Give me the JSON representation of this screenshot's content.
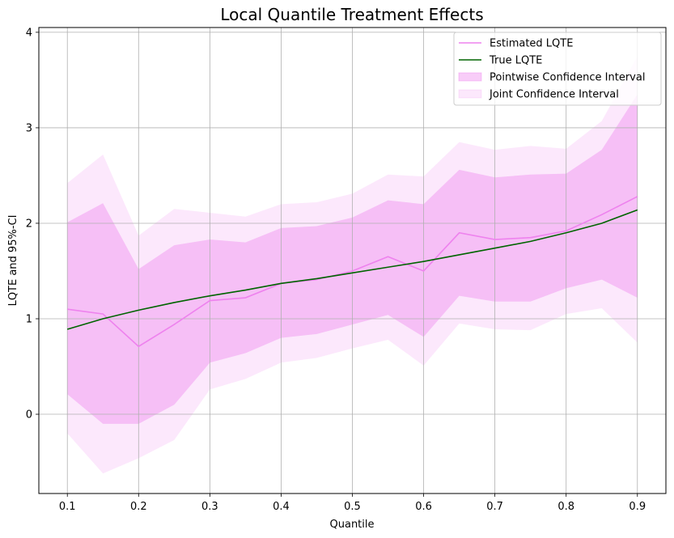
{
  "chart_data": {
    "type": "line",
    "title": "Local Quantile Treatment Effects",
    "xlabel": "Quantile",
    "ylabel": "LQTE and 95%-CI",
    "grid": true,
    "legend_position": "top-right",
    "xlim": [
      0.06,
      0.94
    ],
    "ylim": [
      -0.83,
      4.05
    ],
    "xticks": [
      0.1,
      0.2,
      0.3,
      0.4,
      0.5,
      0.6,
      0.7,
      0.8,
      0.9
    ],
    "xtick_labels": [
      "0.1",
      "0.2",
      "0.3",
      "0.4",
      "0.5",
      "0.6",
      "0.7",
      "0.8",
      "0.9"
    ],
    "yticks": [
      0,
      1,
      2,
      3,
      4
    ],
    "ytick_labels": [
      "0",
      "1",
      "2",
      "3",
      "4"
    ],
    "x": [
      0.1,
      0.15,
      0.2,
      0.25,
      0.3,
      0.35,
      0.4,
      0.45,
      0.5,
      0.55,
      0.6,
      0.65,
      0.7,
      0.75,
      0.8,
      0.85,
      0.9
    ],
    "series": [
      {
        "name": "Estimated LQTE",
        "kind": "line",
        "color": "#ee82ee",
        "values": [
          1.1,
          1.05,
          0.71,
          0.94,
          1.19,
          1.22,
          1.37,
          1.41,
          1.5,
          1.65,
          1.5,
          1.9,
          1.83,
          1.85,
          1.92,
          2.09,
          2.28
        ]
      },
      {
        "name": "True LQTE",
        "kind": "line",
        "color": "#006400",
        "values": [
          0.89,
          1.0,
          1.09,
          1.17,
          1.24,
          1.3,
          1.37,
          1.42,
          1.48,
          1.54,
          1.6,
          1.67,
          1.74,
          1.81,
          1.9,
          2.0,
          2.14
        ]
      },
      {
        "name": "Pointwise Confidence Interval",
        "kind": "band",
        "color": "#ee82ee",
        "opacity": 0.4,
        "lower": [
          0.21,
          -0.1,
          -0.1,
          0.1,
          0.54,
          0.64,
          0.8,
          0.84,
          0.94,
          1.04,
          0.81,
          1.24,
          1.18,
          1.18,
          1.32,
          1.41,
          1.22
        ],
        "upper": [
          2.01,
          2.21,
          1.52,
          1.77,
          1.83,
          1.8,
          1.95,
          1.97,
          2.06,
          2.24,
          2.2,
          2.56,
          2.48,
          2.51,
          2.52,
          2.77,
          3.35
        ]
      },
      {
        "name": "Joint Confidence Interval",
        "kind": "band",
        "color": "#ee82ee",
        "opacity": 0.18,
        "lower": [
          -0.2,
          -0.62,
          -0.46,
          -0.27,
          0.26,
          0.37,
          0.54,
          0.59,
          0.69,
          0.78,
          0.51,
          0.95,
          0.89,
          0.88,
          1.05,
          1.11,
          0.75
        ],
        "upper": [
          2.42,
          2.72,
          1.87,
          2.15,
          2.11,
          2.07,
          2.2,
          2.22,
          2.31,
          2.51,
          2.49,
          2.85,
          2.77,
          2.81,
          2.78,
          3.07,
          3.75
        ]
      }
    ]
  }
}
